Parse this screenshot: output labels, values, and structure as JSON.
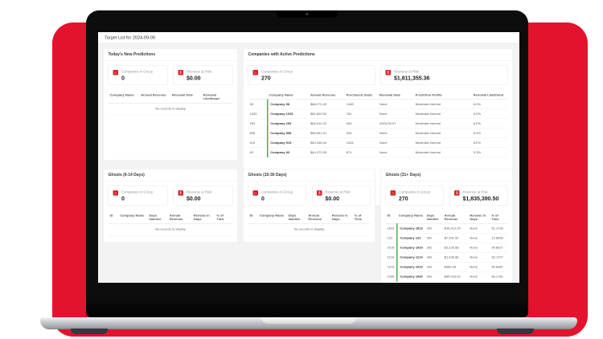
{
  "colors": {
    "background_red": "#E4132D",
    "stat_icon_red": "#D8232A",
    "accent_green": "#4CAF50"
  },
  "app": {
    "title_bar": "Target List for 2024-09-09",
    "no_records_text": "No records to display",
    "panels": {
      "today": {
        "title": "Today's New Predictions",
        "stats": [
          {
            "icon": "companies-icon",
            "glyph": "⌂",
            "label": "Companies in Group",
            "value": "0"
          },
          {
            "icon": "revenue-icon",
            "glyph": "$",
            "label": "Revenue at Risk",
            "value": "$0.00"
          }
        ],
        "table": {
          "headers": [
            "Company Name",
            "Annual Revenue",
            "Renewal Date",
            "Renewal Likelihood"
          ],
          "rows": []
        }
      },
      "active": {
        "title": "Companies with Active Predictions",
        "stats": [
          {
            "icon": "companies-icon",
            "glyph": "⌂",
            "label": "Companies in Group",
            "value": "270"
          },
          {
            "icon": "revenue-icon",
            "glyph": "$",
            "label": "Revenue at Risk",
            "value": "$1,811,355.36"
          }
        ],
        "table": {
          "accent_col": 1,
          "headers": [
            "",
            "Company Name",
            "Annual Revenue",
            "Purchased Seats",
            "Renewal Date",
            "Prediction Profile",
            "Renewal Likelihood"
          ],
          "rows": [
            [
              "98",
              "Company 98",
              "$68,274.40",
              "1448",
              "None",
              "Moderate-Normal",
              "8.0%"
            ],
            [
              "1033",
              "Company 1033",
              "$62,820.00",
              "781",
              "None",
              "Moderate-Normal",
              "9.0%"
            ],
            [
              "293",
              "Company 293",
              "$65,510.22",
              "933",
              "2025-09-07",
              "Moderate-Normal",
              "8.0%"
            ],
            [
              "898",
              "Company 898",
              "$58,961.51",
              "944",
              "None",
              "Moderate-Normal",
              "8.2%"
            ],
            [
              "519",
              "Company 519",
              "$40,248.44",
              "1404",
              "None",
              "Moderate-Normal",
              "8.0%"
            ],
            [
              "83",
              "Company 83",
              "$44,072.05",
              "871",
              "None",
              "Moderate-Normal",
              "9.3%"
            ]
          ]
        }
      },
      "ghosts_0_14": {
        "title": "Ghosts (0-14 Days)",
        "stats": [
          {
            "icon": "companies-icon",
            "glyph": "⌂",
            "label": "Companies in Group",
            "value": "0"
          },
          {
            "icon": "revenue-icon",
            "glyph": "$",
            "label": "Revenue at Risk",
            "value": "$0.00"
          }
        ],
        "table": {
          "headers": [
            "ID",
            "Company Name",
            "Days Inactive",
            "Annual Revenue",
            "Renews in Days",
            "% of Time"
          ],
          "rows": []
        }
      },
      "ghosts_15_30": {
        "title": "Ghosts (15-30 Days)",
        "stats": [
          {
            "icon": "companies-icon",
            "glyph": "⌂",
            "label": "Companies in Group",
            "value": "0"
          },
          {
            "icon": "revenue-icon",
            "glyph": "$",
            "label": "Revenue at Risk",
            "value": "$0.00"
          }
        ],
        "table": {
          "headers": [
            "ID",
            "Company Name",
            "Days Inactive",
            "Annual Revenue",
            "Renews in Days",
            "% of Time"
          ],
          "rows": []
        }
      },
      "ghosts_31": {
        "title": "Ghosts (31+ Days)",
        "stats": [
          {
            "icon": "companies-icon",
            "glyph": "⌂",
            "label": "Companies in Group",
            "value": "270"
          },
          {
            "icon": "revenue-icon",
            "glyph": "$",
            "label": "Revenue at Risk",
            "value": "$1,835,390.50"
          }
        ],
        "table": {
          "accent_col": 1,
          "headers": [
            "ID",
            "Company Name",
            "Days Inactive",
            "Annual Revenue",
            "Renews in Days",
            "% of Time"
          ],
          "rows": [
            [
              "1813",
              "Company 1813",
              "342",
              "$16,412.00",
              "None",
              "51.1728"
            ],
            [
              "131",
              "Company 131",
              "342",
              "$7,931.52",
              "None",
              "13.8063"
            ],
            [
              "1915",
              "Company 1915",
              "342",
              "$2,225.88",
              "None",
              "94.8027"
            ],
            [
              "1214",
              "Company 1214",
              "342",
              "$1,039.86",
              "None",
              "93.1707"
            ],
            [
              "1919",
              "Company 1919",
              "342",
              "$980.05",
              "None",
              "45.8387"
            ],
            [
              "1930",
              "Company 1930",
              "342",
              "$95,423.02",
              "None",
              "68.1781"
            ]
          ]
        }
      }
    }
  }
}
